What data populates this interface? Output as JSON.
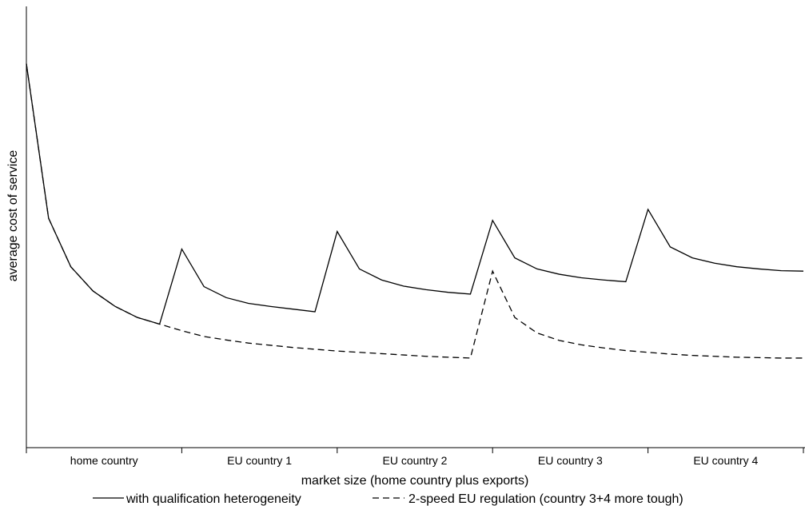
{
  "chart_data": {
    "type": "line",
    "title": "",
    "xlabel": "market size (home country plus exports)",
    "ylabel": "average cost of service",
    "categories": [
      "home country",
      "EU country 1",
      "EU country 2",
      "EU country 3",
      "EU country 4"
    ],
    "x": [
      0,
      1,
      2,
      3,
      4,
      5,
      6,
      7,
      8,
      9,
      10,
      11,
      12,
      13,
      14,
      15,
      16,
      17,
      18,
      19,
      20,
      21,
      22,
      23,
      24,
      25,
      26,
      27,
      28,
      29,
      30,
      31,
      32,
      33,
      34,
      35
    ],
    "xlim": [
      0,
      35
    ],
    "ylim": [
      0,
      10
    ],
    "grid": false,
    "legend_position": "bottom",
    "series": [
      {
        "name": "with qualification heterogeneity",
        "style": "solid",
        "color": "#000000",
        "values": [
          8.7,
          5.2,
          4.1,
          3.55,
          3.2,
          2.95,
          2.8,
          4.5,
          3.65,
          3.4,
          3.27,
          3.2,
          3.14,
          3.08,
          4.9,
          4.05,
          3.8,
          3.66,
          3.58,
          3.52,
          3.48,
          5.15,
          4.3,
          4.05,
          3.93,
          3.85,
          3.8,
          3.76,
          5.4,
          4.55,
          4.3,
          4.18,
          4.1,
          4.05,
          4.01,
          4.0
        ]
      },
      {
        "name": "2-speed EU regulation (country 3+4 more tough)",
        "style": "dashed",
        "color": "#000000",
        "values": [
          8.7,
          5.2,
          4.1,
          3.55,
          3.2,
          2.95,
          2.8,
          2.65,
          2.52,
          2.44,
          2.37,
          2.32,
          2.27,
          2.23,
          2.19,
          2.16,
          2.13,
          2.1,
          2.07,
          2.05,
          2.03,
          4.0,
          2.95,
          2.6,
          2.43,
          2.33,
          2.26,
          2.2,
          2.16,
          2.12,
          2.09,
          2.07,
          2.05,
          2.04,
          2.03,
          2.03
        ]
      }
    ]
  }
}
